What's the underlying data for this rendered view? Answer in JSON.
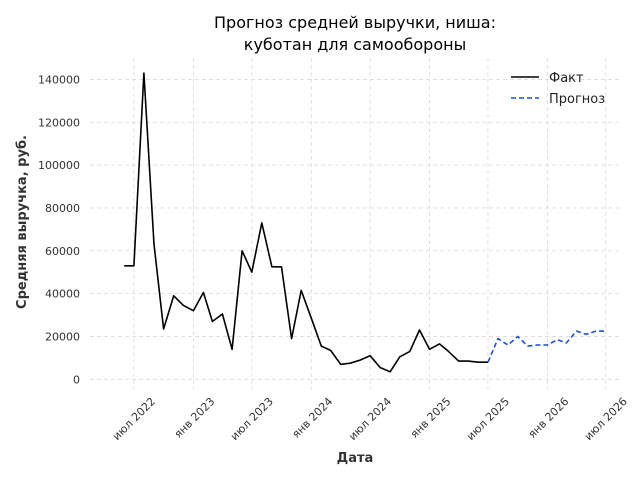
{
  "chart_data": {
    "type": "line",
    "title_lines": [
      "Прогноз средней выручки, ниша:",
      "куботан для самообороны"
    ],
    "xlabel": "Дата",
    "ylabel": "Средняя выручка, руб.",
    "ylim": [
      -5000,
      150000
    ],
    "y_ticks": [
      0,
      20000,
      40000,
      60000,
      80000,
      100000,
      120000,
      140000
    ],
    "x_range": [
      "2022-02-15",
      "2026-08-20"
    ],
    "x_ticks": [
      {
        "date": "2022-07-01",
        "label": "июл 2022"
      },
      {
        "date": "2023-01-01",
        "label": "янв 2023"
      },
      {
        "date": "2023-07-01",
        "label": "июл 2023"
      },
      {
        "date": "2024-01-01",
        "label": "янв 2024"
      },
      {
        "date": "2024-07-01",
        "label": "июл 2024"
      },
      {
        "date": "2025-01-01",
        "label": "янв 2025"
      },
      {
        "date": "2025-07-01",
        "label": "июл 2025"
      },
      {
        "date": "2026-01-01",
        "label": "янв 2026"
      },
      {
        "date": "2026-07-01",
        "label": "июл 2026"
      }
    ],
    "grid": true,
    "legend_position": "top-right",
    "series": [
      {
        "name": "Факт",
        "color": "#000000",
        "style": "solid",
        "x": [
          "2022-06-01",
          "2022-07-01",
          "2022-08-01",
          "2022-09-01",
          "2022-10-01",
          "2022-11-01",
          "2022-12-01",
          "2023-01-01",
          "2023-02-01",
          "2023-03-01",
          "2023-04-01",
          "2023-05-01",
          "2023-06-01",
          "2023-07-01",
          "2023-08-01",
          "2023-09-01",
          "2023-10-01",
          "2023-11-01",
          "2023-12-01",
          "2024-01-01",
          "2024-02-01",
          "2024-03-01",
          "2024-04-01",
          "2024-05-01",
          "2024-06-01",
          "2024-07-01",
          "2024-08-01",
          "2024-09-01",
          "2024-10-01",
          "2024-11-01",
          "2024-12-01",
          "2025-01-01",
          "2025-02-01",
          "2025-03-01",
          "2025-04-01",
          "2025-05-01",
          "2025-06-01",
          "2025-07-01"
        ],
        "y": [
          53000,
          53000,
          143000,
          63000,
          23500,
          39000,
          34500,
          32000,
          40500,
          27000,
          30500,
          14000,
          60000,
          50000,
          73000,
          52500,
          52500,
          19000,
          41500,
          28500,
          15500,
          13500,
          7000,
          7500,
          9000,
          11000,
          5500,
          3500,
          10500,
          13000,
          23000,
          14000,
          16500,
          13000,
          8500,
          8500,
          8000,
          8000
        ]
      },
      {
        "name": "Прогноз",
        "color": "#1f4fd8",
        "style": "dashed",
        "x": [
          "2025-07-01",
          "2025-08-01",
          "2025-09-01",
          "2025-10-01",
          "2025-11-01",
          "2025-12-01",
          "2026-01-01",
          "2026-02-01",
          "2026-03-01",
          "2026-04-01",
          "2026-05-01",
          "2026-06-01",
          "2026-07-01"
        ],
        "y": [
          8000,
          19000,
          16000,
          20000,
          15500,
          16000,
          16000,
          18500,
          17000,
          22500,
          21000,
          22500,
          22500
        ]
      }
    ]
  }
}
